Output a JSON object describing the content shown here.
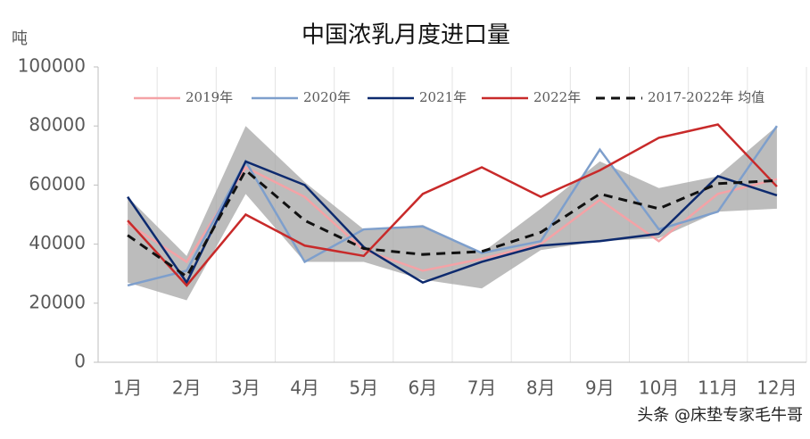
{
  "chart_data": {
    "type": "line",
    "title": "中国浓乳月度进口量",
    "y_label": "吨",
    "categories": [
      "1月",
      "2月",
      "3月",
      "4月",
      "5月",
      "6月",
      "7月",
      "8月",
      "9月",
      "10月",
      "11月",
      "12月"
    ],
    "series": [
      {
        "name": "2019年",
        "color": "#f4a2a6",
        "dash": false,
        "values": [
          47000,
          34000,
          66000,
          56000,
          38000,
          31000,
          35000,
          40000,
          55000,
          41000,
          57000,
          62000
        ]
      },
      {
        "name": "2020年",
        "color": "#7e9fcc",
        "dash": false,
        "values": [
          26000,
          31000,
          68000,
          34000,
          45000,
          46000,
          37000,
          41000,
          72000,
          45000,
          51000,
          80000
        ]
      },
      {
        "name": "2021年",
        "color": "#0d2a6e",
        "dash": false,
        "values": [
          56000,
          27000,
          68000,
          60000,
          39000,
          27000,
          34000,
          39500,
          41000,
          43500,
          63000,
          56500
        ]
      },
      {
        "name": "2022年",
        "color": "#c82a2a",
        "dash": false,
        "values": [
          48000,
          26000,
          50000,
          39500,
          36000,
          57000,
          66000,
          56000,
          65000,
          76000,
          80500,
          59500
        ]
      },
      {
        "name": "2017-2022年 均值",
        "color": "#111111",
        "dash": true,
        "values": [
          43000,
          29000,
          65000,
          48000,
          38500,
          36500,
          37500,
          44000,
          57000,
          52000,
          60500,
          61500
        ]
      }
    ],
    "band": {
      "color": "#a6a6a6",
      "upper": [
        56000,
        36000,
        80000,
        61000,
        45000,
        46500,
        37000,
        52000,
        68000,
        59000,
        63000,
        80000
      ],
      "lower": [
        27000,
        21000,
        57000,
        34000,
        34000,
        28000,
        25000,
        38000,
        41000,
        42000,
        51000,
        52000
      ]
    },
    "ylim": [
      0,
      100000
    ],
    "yticks": [
      0,
      20000,
      40000,
      60000,
      80000,
      100000
    ],
    "grid": "vertical",
    "watermark": "头条 @床垫专家毛牛哥"
  }
}
